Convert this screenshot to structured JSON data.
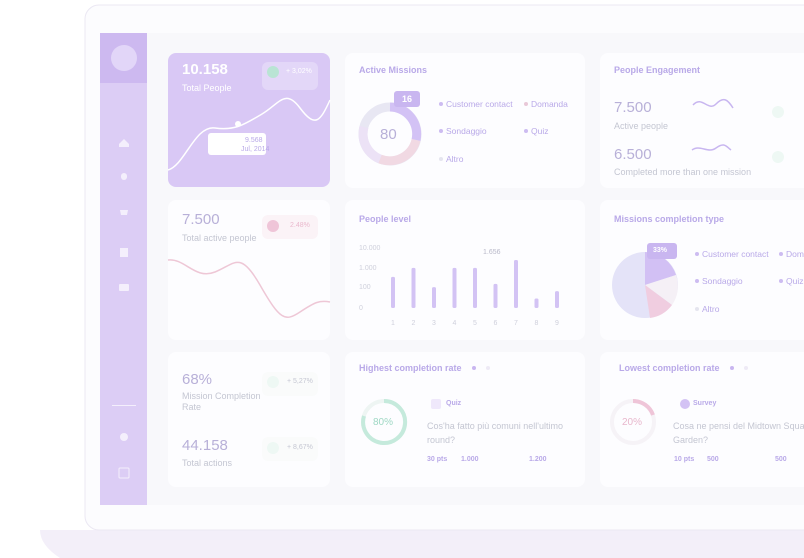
{
  "total_people": {
    "value": "10.158",
    "label": "Total People",
    "change": "+ 3,02%",
    "tooltip_value": "9.568",
    "tooltip_date": "Jul, 2014"
  },
  "active_missions": {
    "title": "Active Missions",
    "center": "80",
    "badge": "16",
    "legend": [
      "Customer contact",
      "Domanda",
      "Sondaggio",
      "Quiz",
      "Altro"
    ]
  },
  "people_engagement": {
    "title": "People Engagement",
    "active_value": "7.500",
    "active_label": "Active people",
    "completed_value": "6.500",
    "completed_label": "Completed more than one mission"
  },
  "total_active": {
    "value": "7.500",
    "label": "Total active people",
    "change": "2.48%"
  },
  "people_level": {
    "title": "People level",
    "tooltip": "1.656",
    "chart_data": {
      "type": "bar",
      "categories": [
        "1",
        "2",
        "3",
        "4",
        "5",
        "6",
        "7",
        "8",
        "9"
      ],
      "values": [
        350,
        1000,
        100,
        1000,
        1000,
        150,
        2500,
        20,
        60
      ],
      "color": "#d3c3f4",
      "yscale": "symlog",
      "ylim": [
        0,
        10000
      ],
      "yticks": [
        0,
        100,
        {
          "value": 1000,
          "label": "1.000"
        },
        {
          "value": 10000,
          "label": "10.000"
        }
      ],
      "grid": false
    }
  },
  "missions_completion": {
    "title": "Missions completion type",
    "badge": "33%",
    "legend": [
      "Customer contact",
      "Domanda",
      "Sondaggio",
      "Quiz",
      "Altro"
    ]
  },
  "completion_rate": {
    "value": "68%",
    "label": "Mission Completion Rate",
    "change": "+ 5,27%"
  },
  "total_actions": {
    "value": "44.158",
    "label": "Total actions",
    "change": "+ 8,67%"
  },
  "highest": {
    "title": "Highest completion rate",
    "percent": "80%",
    "tag": "Quiz",
    "question": "Cos'ha fatto più comuni nell'ultimo round?",
    "points": "30 pts",
    "stat1": "1.000",
    "stat2": "1.200"
  },
  "lowest": {
    "title": "Lowest completion rate",
    "percent": "20%",
    "tag": "Survey",
    "question": "Cosa ne pensi del Midtown Square Garden?",
    "points": "10 pts",
    "stat1": "500",
    "stat2": "500"
  }
}
